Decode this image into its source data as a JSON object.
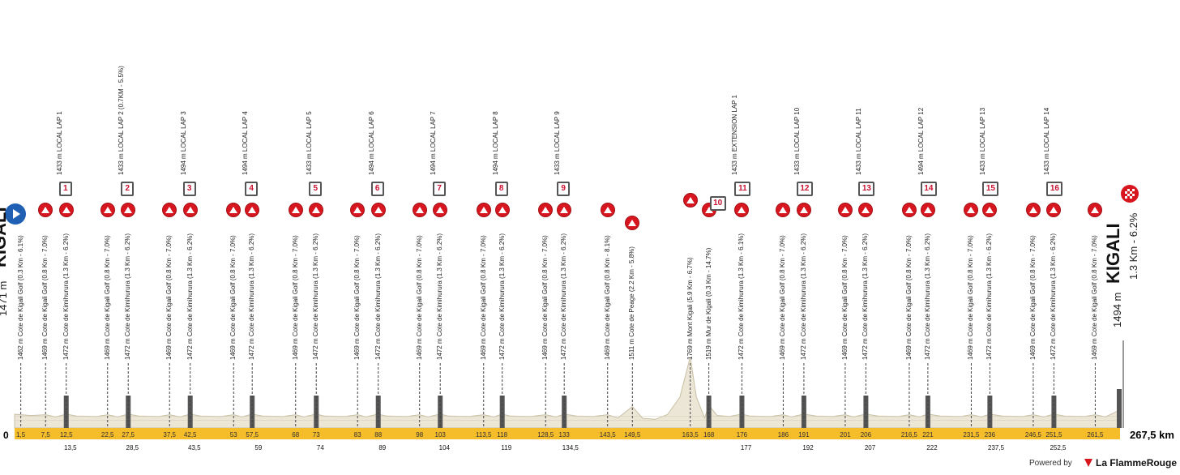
{
  "chart_data": {
    "type": "area",
    "title": "",
    "xlabel": "",
    "ylabel": "",
    "total_km_label": "267,5 km",
    "zero_label": "0",
    "start": {
      "city": "KIGALI",
      "altitude": "1471 m"
    },
    "finish": {
      "city": "KIGALI",
      "altitude": "1494 m",
      "final_climb": "1.3 Km - 6.2%"
    },
    "profile": [
      [
        0,
        1471
      ],
      [
        4,
        1465
      ],
      [
        7.5,
        1469
      ],
      [
        10,
        1458
      ],
      [
        12.5,
        1472
      ],
      [
        15,
        1462
      ],
      [
        20,
        1460
      ],
      [
        22.5,
        1469
      ],
      [
        25,
        1458
      ],
      [
        27.5,
        1472
      ],
      [
        30,
        1462
      ],
      [
        35,
        1460
      ],
      [
        37.5,
        1469
      ],
      [
        40,
        1458
      ],
      [
        42.5,
        1472
      ],
      [
        45,
        1462
      ],
      [
        50,
        1460
      ],
      [
        53,
        1469
      ],
      [
        55,
        1458
      ],
      [
        57.5,
        1472
      ],
      [
        60,
        1462
      ],
      [
        65,
        1460
      ],
      [
        68,
        1469
      ],
      [
        70,
        1458
      ],
      [
        73,
        1472
      ],
      [
        75,
        1462
      ],
      [
        80,
        1460
      ],
      [
        83,
        1469
      ],
      [
        85,
        1458
      ],
      [
        88,
        1472
      ],
      [
        90,
        1462
      ],
      [
        95,
        1460
      ],
      [
        98,
        1469
      ],
      [
        100,
        1458
      ],
      [
        103,
        1472
      ],
      [
        105,
        1462
      ],
      [
        110,
        1460
      ],
      [
        113.5,
        1469
      ],
      [
        116,
        1458
      ],
      [
        118,
        1472
      ],
      [
        120,
        1462
      ],
      [
        125,
        1460
      ],
      [
        128.5,
        1469
      ],
      [
        131,
        1458
      ],
      [
        133,
        1472
      ],
      [
        136,
        1462
      ],
      [
        140,
        1460
      ],
      [
        143.5,
        1469
      ],
      [
        146,
        1452
      ],
      [
        149.5,
        1511
      ],
      [
        152,
        1450
      ],
      [
        155,
        1445
      ],
      [
        158,
        1470
      ],
      [
        161,
        1560
      ],
      [
        163.5,
        1769
      ],
      [
        165,
        1560
      ],
      [
        167,
        1452
      ],
      [
        168,
        1519
      ],
      [
        170,
        1465
      ],
      [
        173,
        1460
      ],
      [
        176,
        1472
      ],
      [
        178,
        1462
      ],
      [
        183,
        1460
      ],
      [
        186,
        1469
      ],
      [
        188,
        1458
      ],
      [
        191,
        1472
      ],
      [
        194,
        1462
      ],
      [
        198,
        1460
      ],
      [
        201,
        1469
      ],
      [
        203,
        1458
      ],
      [
        206,
        1472
      ],
      [
        209,
        1462
      ],
      [
        214,
        1460
      ],
      [
        216.5,
        1469
      ],
      [
        219,
        1458
      ],
      [
        221,
        1472
      ],
      [
        224,
        1462
      ],
      [
        229,
        1460
      ],
      [
        231.5,
        1469
      ],
      [
        234,
        1458
      ],
      [
        236,
        1472
      ],
      [
        239,
        1462
      ],
      [
        244,
        1460
      ],
      [
        246.5,
        1469
      ],
      [
        249,
        1458
      ],
      [
        251.5,
        1472
      ],
      [
        254,
        1462
      ],
      [
        259,
        1460
      ],
      [
        261.5,
        1469
      ],
      [
        264,
        1458
      ],
      [
        267.5,
        1494
      ]
    ],
    "tick_labels_top": [
      "1,5",
      "7,5",
      "12,5",
      "22,5",
      "27,5",
      "37,5",
      "42,5",
      "53",
      "57,5",
      "68",
      "73",
      "83",
      "88",
      "98",
      "103",
      "113,5",
      "118",
      "128,5",
      "133",
      "143,5",
      "149,5",
      "163,5",
      "168",
      "176",
      "186",
      "191",
      "201",
      "206",
      "216,5",
      "221",
      "231,5",
      "236",
      "246,5",
      "251,5",
      "261,5"
    ],
    "tick_km_top": [
      1.5,
      7.5,
      12.5,
      22.5,
      27.5,
      37.5,
      42.5,
      53,
      57.5,
      68,
      73,
      83,
      88,
      98,
      103,
      113.5,
      118,
      128.5,
      133,
      143.5,
      149.5,
      163.5,
      168,
      176,
      186,
      191,
      201,
      206,
      216.5,
      221,
      231.5,
      236,
      246.5,
      251.5,
      261.5
    ],
    "tick_labels_bottom": [
      "13,5",
      "28,5",
      "43,5",
      "59",
      "74",
      "89",
      "104",
      "119",
      "134,5",
      "177",
      "192",
      "207",
      "222",
      "237,5",
      "252,5"
    ],
    "tick_km_bottom": [
      13.5,
      28.5,
      43.5,
      59,
      74,
      89,
      104,
      119,
      134.5,
      177,
      192,
      207,
      222,
      237.5,
      252.5
    ],
    "climbs": [
      {
        "km": 1.5,
        "label": "1462 m Cote de Kigali Golf (0.3 Km - 6.1%)",
        "icon": false
      },
      {
        "km": 7.5,
        "label": "1469 m Cote de Kigali Golf (0.8 Km - 7.0%)",
        "icon": true
      },
      {
        "km": 12.5,
        "label": "1472 m Cote de Kimihurura (1.3 Km - 6.2%)",
        "icon": true
      },
      {
        "km": 22.5,
        "label": "1469 m Cote de Kigali Golf (0.8 Km - 7.0%)",
        "icon": true
      },
      {
        "km": 27.5,
        "label": "1472 m Cote de Kimihurura (1.3 Km - 6.2%)",
        "icon": true
      },
      {
        "km": 37.5,
        "label": "1469 m Cote de Kigali Golf (0.8 Km - 7.0%)",
        "icon": true
      },
      {
        "km": 42.5,
        "label": "1472 m Cote de Kimihurura (1.3 Km - 6.2%)",
        "icon": true
      },
      {
        "km": 53,
        "label": "1469 m Cote de Kigali Golf (0.8 Km - 7.0%)",
        "icon": true
      },
      {
        "km": 57.5,
        "label": "1472 m Cote de Kimihurura (1.3 Km - 6.2%)",
        "icon": true
      },
      {
        "km": 68,
        "label": "1469 m Cote de Kigali Golf (0.8 Km - 7.0%)",
        "icon": true
      },
      {
        "km": 73,
        "label": "1472 m Cote de Kimihurura (1.3 Km - 6.2%)",
        "icon": true
      },
      {
        "km": 83,
        "label": "1469 m Cote de Kigali Golf (0.8 Km - 7.0%)",
        "icon": true
      },
      {
        "km": 88,
        "label": "1472 m Cote de Kimihurura (1.3 Km - 6.2%)",
        "icon": true
      },
      {
        "km": 98,
        "label": "1469 m Cote de Kigali Golf (0.8 Km - 7.0%)",
        "icon": true
      },
      {
        "km": 103,
        "label": "1472 m Cote de Kimihurura (1.3 Km - 6.2%)",
        "icon": true
      },
      {
        "km": 113.5,
        "label": "1469 m Cote de Kigali Golf (0.8 Km - 7.0%)",
        "icon": true
      },
      {
        "km": 118,
        "label": "1472 m Cote de Kimihurura (1.3 Km - 6.2%)",
        "icon": true
      },
      {
        "km": 128.5,
        "label": "1469 m Cote de Kigali Golf (0.8 Km - 7.0%)",
        "icon": true
      },
      {
        "km": 133,
        "label": "1472 m Cote de Kimihurura (1.3 Km - 6.2%)",
        "icon": true
      },
      {
        "km": 143.5,
        "label": "1469 m Cote de Kigali Golf (0.8 Km - 8.1%)",
        "icon": true
      },
      {
        "km": 149.5,
        "label": "1511 m Cote de Peage (2.2 Km - 5.8%)",
        "icon": true
      },
      {
        "km": 163.5,
        "label": "1769 m Mont Kigali (5.9 Km - 6.7%)",
        "icon": true
      },
      {
        "km": 168,
        "label": "1519 m Mur de Kigali (0.3 Km - 14.7%)",
        "icon": true
      },
      {
        "km": 176,
        "label": "1472 m Cote de Kimihurura (1.3 Km - 6.1%)",
        "icon": true
      },
      {
        "km": 186,
        "label": "1469 m Cote de Kigali Golf (0.8 Km - 7.0%)",
        "icon": true
      },
      {
        "km": 191,
        "label": "1472 m Cote de Kimihurura (1.3 Km - 6.2%)",
        "icon": true
      },
      {
        "km": 201,
        "label": "1469 m Cote de Kigali Golf (0.8 Km - 7.0%)",
        "icon": true
      },
      {
        "km": 206,
        "label": "1472 m Cote de Kimihurura (1.3 Km - 6.2%)",
        "icon": true
      },
      {
        "km": 216.5,
        "label": "1469 m Cote de Kigali Golf (0.8 Km - 7.0%)",
        "icon": true
      },
      {
        "km": 221,
        "label": "1472 m Cote de Kimihurura (1.3 Km - 6.2%)",
        "icon": true
      },
      {
        "km": 231.5,
        "label": "1469 m Cote de Kigali Golf (0.8 Km - 7.0%)",
        "icon": true
      },
      {
        "km": 236,
        "label": "1472 m Cote de Kimihurura (1.3 Km - 6.2%)",
        "icon": true
      },
      {
        "km": 246.5,
        "label": "1469 m Cote de Kigali Golf (0.8 Km - 7.0%)",
        "icon": true
      },
      {
        "km": 251.5,
        "label": "1472 m Cote de Kimihurura (1.3 Km - 6.2%)",
        "icon": true
      },
      {
        "km": 261.5,
        "label": "1469 m Cote de Kigali Golf (0.8 Km - 7.0%)",
        "icon": true
      }
    ],
    "laps": [
      {
        "km": 12.5,
        "num": "1",
        "label": "1433 m LOCAL LAP 1"
      },
      {
        "km": 27.5,
        "num": "2",
        "label": "1433 m LOCAL LAP 2 (0.7KM - 5.5%)"
      },
      {
        "km": 42.5,
        "num": "3",
        "label": "1494 m LOCAL LAP 3"
      },
      {
        "km": 57.5,
        "num": "4",
        "label": "1494 m LOCAL LAP 4"
      },
      {
        "km": 73,
        "num": "5",
        "label": "1433 m LOCAL LAP 5"
      },
      {
        "km": 88,
        "num": "6",
        "label": "1494 m LOCAL LAP 6"
      },
      {
        "km": 103,
        "num": "7",
        "label": "1494 m LOCAL LAP 7"
      },
      {
        "km": 118,
        "num": "8",
        "label": "1494 m LOCAL LAP 8"
      },
      {
        "km": 133,
        "num": "9",
        "label": "1433 m LOCAL LAP 9"
      },
      {
        "km": 168,
        "num": "10",
        "label": ""
      },
      {
        "km": 176,
        "num": "11",
        "label": "1433 m EXTENSION LAP 1"
      },
      {
        "km": 191,
        "num": "12",
        "label": "1433 m LOCAL LAP 10"
      },
      {
        "km": 206,
        "num": "13",
        "label": "1433 m LOCAL LAP 11"
      },
      {
        "km": 221,
        "num": "14",
        "label": "1494 m LOCAL LAP 12"
      },
      {
        "km": 236,
        "num": "15",
        "label": "1433 m LOCAL LAP 13"
      },
      {
        "km": 251.5,
        "num": "16",
        "label": "1433 m LOCAL LAP 14"
      }
    ],
    "colors": {
      "profile_fill": "#ece6d6",
      "profile_stroke": "#c9bfa6",
      "km_band": "#f5bd2a",
      "sprint_bar": "#555555",
      "climb_icon": "#d7161f"
    }
  },
  "footer": {
    "powered_by": "Powered by",
    "brand": "La FlammeRouge"
  }
}
